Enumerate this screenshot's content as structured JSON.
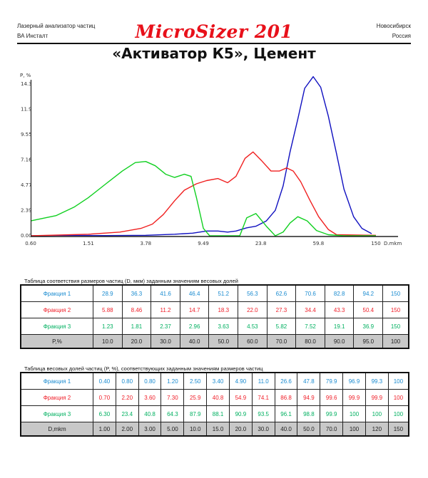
{
  "header": {
    "left_line1": "Лазерный анализатор частиц",
    "left_line2": "ВА Инсталт",
    "brand": "MicroSizer 201",
    "right_line1": "Новосибирск",
    "right_line2": "Россия",
    "title": "«Активатор К5», Цемент"
  },
  "colors": {
    "fraction1_line": "#1010c0",
    "fraction2_line": "#f02020",
    "fraction3_line": "#10d020",
    "fraction1_text": "#1a8bd0",
    "fraction2_text": "#f0202a",
    "fraction3_text": "#00b060",
    "brand": "#e8101a",
    "axis_row_bg": "#c8c8c8"
  },
  "chart_data": {
    "type": "line",
    "title": "«Активатор К5», Цемент",
    "xlabel": "D.mkm",
    "ylabel": "P, %",
    "x_scale": "log",
    "x_ticks": [
      "0.60",
      "1.51",
      "3.78",
      "9.49",
      "23.8",
      "59.8",
      "150"
    ],
    "y_ticks": [
      "0.00",
      "2.39",
      "4.77",
      "7.16",
      "9.55",
      "11.9",
      "14.3"
    ],
    "ylim": [
      0,
      14.3
    ],
    "xlim": [
      0.6,
      150
    ],
    "grid": false,
    "series": [
      {
        "name": "Фракция 1",
        "color": "#1010c0",
        "points": [
          [
            0.6,
            0.0
          ],
          [
            1.0,
            0.05
          ],
          [
            2.0,
            0.02
          ],
          [
            3.78,
            0.05
          ],
          [
            6.0,
            0.15
          ],
          [
            8.0,
            0.25
          ],
          [
            10.0,
            0.45
          ],
          [
            12.0,
            0.45
          ],
          [
            14.0,
            0.35
          ],
          [
            16.0,
            0.45
          ],
          [
            19.0,
            0.75
          ],
          [
            22.0,
            0.9
          ],
          [
            26.0,
            1.4
          ],
          [
            30.0,
            2.4
          ],
          [
            34.0,
            4.7
          ],
          [
            38.0,
            7.9
          ],
          [
            43.0,
            11.0
          ],
          [
            48.0,
            13.9
          ],
          [
            55.0,
            15.0
          ],
          [
            62.0,
            14.0
          ],
          [
            70.0,
            11.3
          ],
          [
            80.0,
            7.7
          ],
          [
            90.0,
            4.4
          ],
          [
            105.0,
            1.8
          ],
          [
            120.0,
            0.7
          ],
          [
            140.0,
            0.2
          ]
        ]
      },
      {
        "name": "Фракция 2",
        "color": "#f02020",
        "points": [
          [
            0.6,
            0.0
          ],
          [
            1.51,
            0.15
          ],
          [
            2.5,
            0.35
          ],
          [
            3.5,
            0.7
          ],
          [
            4.2,
            1.1
          ],
          [
            5.0,
            2.0
          ],
          [
            6.0,
            3.3
          ],
          [
            7.0,
            4.3
          ],
          [
            8.5,
            4.9
          ],
          [
            10.0,
            5.2
          ],
          [
            12.0,
            5.4
          ],
          [
            14.0,
            5.0
          ],
          [
            16.0,
            5.6
          ],
          [
            18.5,
            7.3
          ],
          [
            21.0,
            7.9
          ],
          [
            24.0,
            7.1
          ],
          [
            28.0,
            6.1
          ],
          [
            32.0,
            6.1
          ],
          [
            36.0,
            6.4
          ],
          [
            40.0,
            6.1
          ],
          [
            45.0,
            5.1
          ],
          [
            52.0,
            3.4
          ],
          [
            60.0,
            1.8
          ],
          [
            70.0,
            0.6
          ],
          [
            80.0,
            0.1
          ],
          [
            150.0,
            0.05
          ]
        ]
      },
      {
        "name": "Фракция 3",
        "color": "#10d020",
        "points": [
          [
            0.6,
            1.4
          ],
          [
            0.9,
            1.9
          ],
          [
            1.2,
            2.7
          ],
          [
            1.51,
            3.6
          ],
          [
            2.0,
            4.9
          ],
          [
            2.6,
            6.1
          ],
          [
            3.2,
            6.9
          ],
          [
            3.78,
            7.0
          ],
          [
            4.4,
            6.6
          ],
          [
            5.2,
            5.8
          ],
          [
            6.0,
            5.5
          ],
          [
            7.0,
            5.8
          ],
          [
            7.8,
            5.6
          ],
          [
            8.5,
            3.6
          ],
          [
            9.5,
            0.7
          ],
          [
            10.5,
            0.0
          ],
          [
            17.0,
            0.0
          ],
          [
            19.0,
            1.7
          ],
          [
            22.0,
            2.1
          ],
          [
            26.0,
            0.9
          ],
          [
            30.0,
            0.0
          ],
          [
            34.0,
            0.35
          ],
          [
            38.0,
            1.2
          ],
          [
            43.0,
            1.8
          ],
          [
            50.0,
            1.4
          ],
          [
            58.0,
            0.5
          ],
          [
            70.0,
            0.1
          ],
          [
            90.0,
            0.0
          ],
          [
            150.0,
            0.0
          ]
        ]
      }
    ],
    "tables": [
      {
        "caption": "Таблица соответствия размеров частиц (D, мкм) заданным значениям весовых долей",
        "axis_label": "P,%",
        "axis_values": [
          "10.0",
          "20.0",
          "30.0",
          "40.0",
          "50.0",
          "60.0",
          "70.0",
          "80.0",
          "90.0",
          "95.0",
          "100"
        ],
        "rows": [
          {
            "label": "Фракция 1",
            "values": [
              "28.9",
              "36.3",
              "41.6",
              "46.4",
              "51.2",
              "56.3",
              "62.6",
              "70.6",
              "82.8",
              "94.2",
              "150"
            ]
          },
          {
            "label": "Фракция 2",
            "values": [
              "5.88",
              "8.46",
              "11.2",
              "14.7",
              "18.3",
              "22.0",
              "27.3",
              "34.4",
              "43.3",
              "50.4",
              "150"
            ]
          },
          {
            "label": "Фракция 3",
            "values": [
              "1.23",
              "1.81",
              "2.37",
              "2.96",
              "3.63",
              "4.53",
              "5.82",
              "7.52",
              "19.1",
              "36.9",
              "150"
            ]
          }
        ]
      },
      {
        "caption": "Таблица весовых долей частиц (P, %), соответствующих заданным значениям размеров частиц",
        "axis_label": "D,mkm",
        "axis_values": [
          "1.00",
          "2.00",
          "3.00",
          "5.00",
          "10.0",
          "15.0",
          "20.0",
          "30.0",
          "40.0",
          "50.0",
          "70.0",
          "100",
          "120",
          "150"
        ],
        "rows": [
          {
            "label": "Фракция 1",
            "values": [
              "0.40",
              "0.80",
              "0.80",
              "1.20",
              "2.50",
              "3.40",
              "4.90",
              "11.0",
              "26.6",
              "47.8",
              "79.9",
              "96.9",
              "99.3",
              "100"
            ]
          },
          {
            "label": "Фракция 2",
            "values": [
              "0.70",
              "2.20",
              "3.60",
              "7.30",
              "25.9",
              "40.8",
              "54.9",
              "74.1",
              "86.8",
              "94.9",
              "99.6",
              "99.9",
              "99.9",
              "100"
            ]
          },
          {
            "label": "Фракция 3",
            "values": [
              "6.30",
              "23.4",
              "40.8",
              "64.3",
              "87.9",
              "88.1",
              "90.9",
              "93.5",
              "96.1",
              "98.8",
              "99.9",
              "100",
              "100",
              "100"
            ]
          }
        ]
      }
    ]
  }
}
